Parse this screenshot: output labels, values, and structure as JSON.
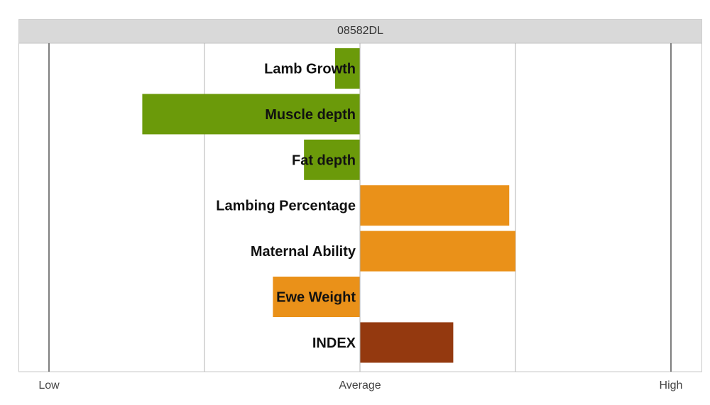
{
  "chart_data": {
    "type": "bar",
    "orientation": "horizontal",
    "title": "08582DL",
    "categories": [
      "Lamb Growth",
      "Muscle depth",
      "Fat depth",
      "Lambing Percentage",
      "Maternal Ability",
      "Ewe Weight",
      "INDEX"
    ],
    "values": [
      -0.08,
      -0.7,
      -0.18,
      0.48,
      0.5,
      -0.28,
      0.3
    ],
    "bar_colors": [
      "#6b9a0a",
      "#6b9a0a",
      "#6b9a0a",
      "#ea9119",
      "#ea9119",
      "#ea9119",
      "#94390f"
    ],
    "xlim": [
      -1,
      1
    ],
    "x_ticks": [
      -1,
      0,
      1
    ],
    "x_tick_labels": [
      "Low",
      "Average",
      "High"
    ],
    "grid_x": [
      -1,
      -0.5,
      0,
      0.5,
      1
    ],
    "grid": true,
    "legend": "none"
  },
  "colors": {
    "growth": "#6b9a0a",
    "maternal": "#ea9119",
    "index": "#94390f",
    "title_band": "#d9d9d9",
    "grid": "#b3b3b3",
    "axis": "#555555"
  }
}
